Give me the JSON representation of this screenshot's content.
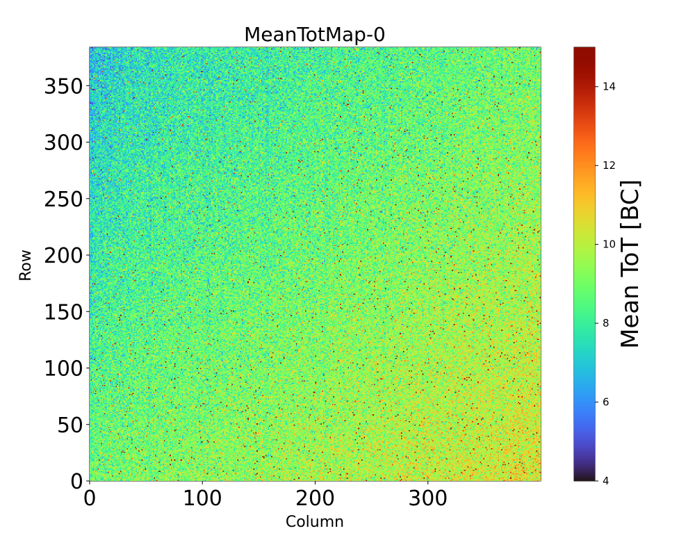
{
  "chart_data": {
    "type": "heatmap",
    "title": "MeanTotMap-0",
    "xlabel": "Column",
    "ylabel": "Row",
    "colorbar_label": "Mean ToT [BC]",
    "xlim": [
      0,
      400
    ],
    "ylim": [
      0,
      384
    ],
    "x_ticks": [
      0,
      100,
      200,
      300
    ],
    "y_ticks": [
      0,
      50,
      100,
      150,
      200,
      250,
      300,
      350
    ],
    "clim": [
      4,
      15
    ],
    "colorbar_ticks": [
      4,
      6,
      8,
      10,
      12,
      14
    ],
    "colormap": "turbo",
    "grid": false,
    "pattern": {
      "typical_mean_tot": 8.9,
      "noise_std": 0.9,
      "description_of_trend": "lower values (~7) toward upper-left, higher values (~9.5-10) toward lower-right"
    }
  }
}
